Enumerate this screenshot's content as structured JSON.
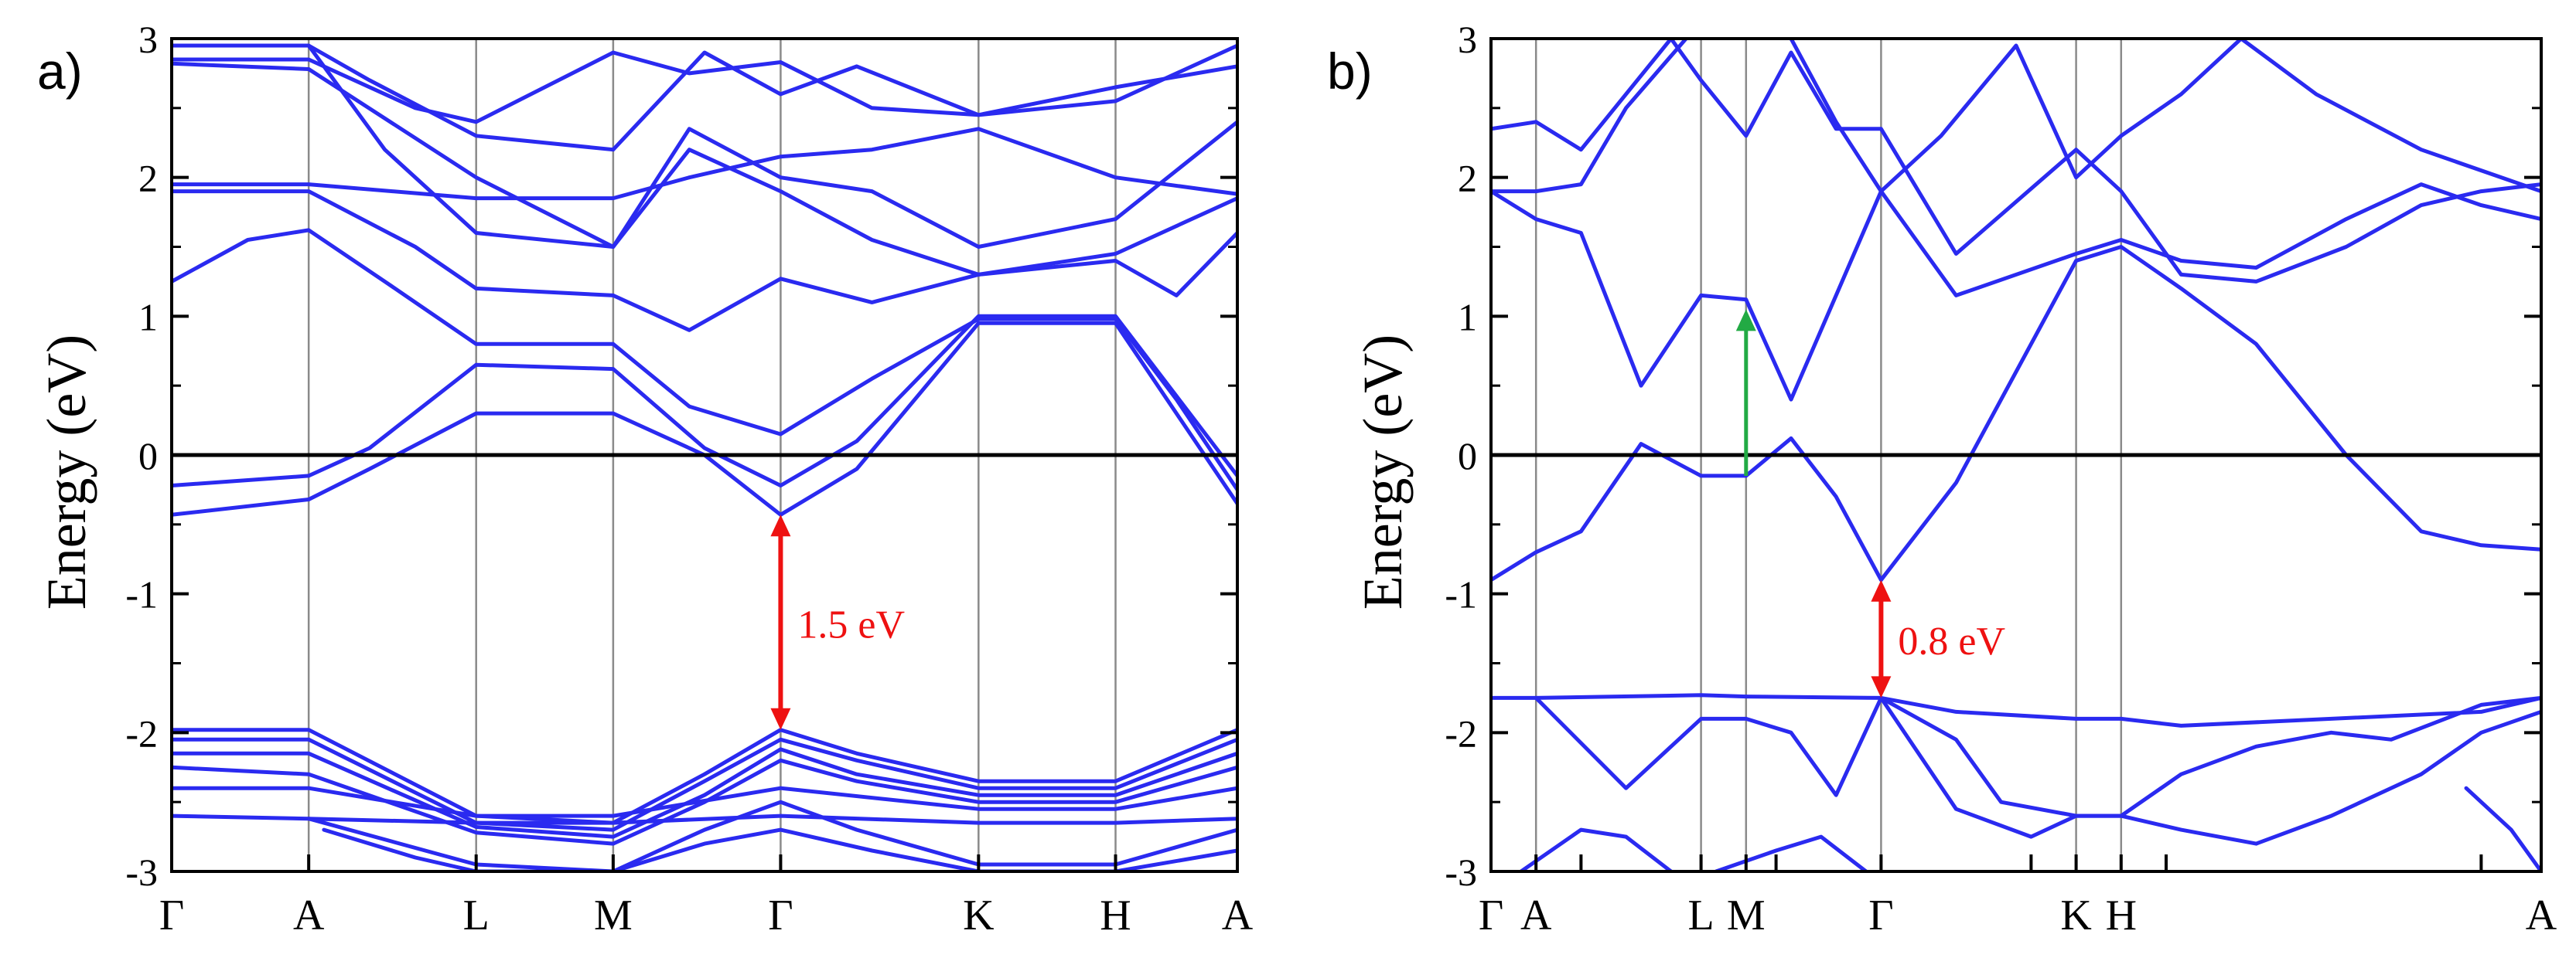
{
  "figure": {
    "background": "#ffffff"
  },
  "chart_data": [
    {
      "type": "line",
      "panel_label": "a)",
      "ylabel": "Energy (eV)",
      "ylim": [
        -3,
        3
      ],
      "yticks": [
        "3",
        "2",
        "1",
        "0",
        "-1",
        "-2",
        "-3"
      ],
      "xlim": [
        0,
        7.0
      ],
      "kpoints": [
        {
          "label": "Γ",
          "x": 0
        },
        {
          "label": "A",
          "x": 0.9
        },
        {
          "label": "L",
          "x": 2.0
        },
        {
          "label": "M",
          "x": 2.9
        },
        {
          "label": "Γ",
          "x": 4.0
        },
        {
          "label": "K",
          "x": 5.3
        },
        {
          "label": "H",
          "x": 6.2
        },
        {
          "label": "A",
          "x": 7.0
        }
      ],
      "fermi_level": 0,
      "line_color": "#2a2af0",
      "gap_annotation": {
        "label": "1.5 eV",
        "x": 4.0,
        "y_from": -0.43,
        "y_to": -1.98,
        "color": "#ee1111"
      },
      "series": [
        {
          "x": [
            0,
            0.9,
            1.3,
            2.0,
            2.9,
            3.5,
            4.0,
            4.5,
            5.3,
            6.2,
            7.0
          ],
          "values": [
            -0.43,
            -0.32,
            -0.1,
            0.3,
            0.3,
            0.0,
            -0.43,
            -0.1,
            0.95,
            0.95,
            -0.35
          ]
        },
        {
          "x": [
            0,
            0.9,
            1.3,
            2.0,
            2.9,
            3.5,
            4.0,
            4.5,
            5.3,
            6.2,
            7.0
          ],
          "values": [
            -0.22,
            -0.15,
            0.05,
            0.65,
            0.62,
            0.05,
            -0.22,
            0.1,
            1.0,
            1.0,
            -0.15
          ]
        },
        {
          "x": [
            0,
            0.5,
            0.9,
            1.4,
            2.0,
            2.9,
            3.4,
            4.0,
            4.6,
            5.3,
            6.2,
            6.6,
            7.0
          ],
          "values": [
            1.25,
            1.55,
            1.62,
            1.25,
            0.8,
            0.8,
            0.35,
            0.15,
            0.55,
            0.98,
            0.98,
            0.4,
            -0.25
          ]
        },
        {
          "x": [
            0,
            0.9,
            1.6,
            2.0,
            2.9,
            3.4,
            4.0,
            4.6,
            5.3,
            6.2,
            6.6,
            7.0
          ],
          "values": [
            1.9,
            1.9,
            1.5,
            1.2,
            1.15,
            0.9,
            1.27,
            1.1,
            1.3,
            1.4,
            1.15,
            1.6
          ]
        },
        {
          "x": [
            0,
            0.9,
            2.0,
            2.9,
            3.4,
            4.0,
            4.6,
            5.3,
            6.2,
            7.0
          ],
          "values": [
            2.82,
            2.78,
            2.0,
            1.5,
            2.2,
            1.9,
            1.55,
            1.3,
            1.45,
            1.85
          ]
        },
        {
          "x": [
            0,
            0.9,
            2.0,
            2.9,
            3.4,
            4.0,
            4.6,
            5.3,
            6.2,
            7.0
          ],
          "values": [
            1.95,
            1.95,
            1.85,
            1.85,
            2.0,
            2.15,
            2.2,
            2.35,
            2.0,
            1.88
          ]
        },
        {
          "x": [
            0,
            0.9,
            1.6,
            2.0,
            2.9,
            3.4,
            4.0,
            4.6,
            5.3,
            6.2,
            7.0
          ],
          "values": [
            2.85,
            2.85,
            2.5,
            2.4,
            2.9,
            2.75,
            2.83,
            2.5,
            2.45,
            2.65,
            2.8
          ]
        },
        {
          "x": [
            0,
            0.9,
            1.4,
            2.0,
            2.9,
            3.4,
            4.0,
            4.6,
            5.3,
            6.2,
            7.0
          ],
          "values": [
            2.95,
            2.95,
            2.2,
            1.6,
            1.5,
            2.35,
            2.0,
            1.9,
            1.5,
            1.7,
            2.4
          ]
        },
        {
          "x": [
            0.9,
            1.3,
            2.0,
            2.9,
            3.5,
            4.0,
            4.5,
            5.3,
            6.2,
            7.0
          ],
          "values": [
            2.95,
            2.7,
            2.3,
            2.2,
            2.9,
            2.6,
            2.8,
            2.45,
            2.55,
            2.95
          ]
        },
        {
          "x": [
            0,
            0.9,
            2.0,
            2.9,
            3.5,
            4.0,
            4.5,
            5.3,
            6.2,
            7.0
          ],
          "values": [
            -1.98,
            -1.98,
            -2.6,
            -2.65,
            -2.3,
            -1.98,
            -2.15,
            -2.35,
            -2.35,
            -1.98
          ]
        },
        {
          "x": [
            0,
            0.9,
            2.0,
            2.9,
            3.5,
            4.0,
            4.5,
            5.3,
            6.2,
            7.0
          ],
          "values": [
            -2.05,
            -2.05,
            -2.65,
            -2.7,
            -2.35,
            -2.05,
            -2.2,
            -2.4,
            -2.4,
            -2.05
          ]
        },
        {
          "x": [
            0,
            0.9,
            2.0,
            2.9,
            3.5,
            4.0,
            4.5,
            5.3,
            6.2,
            7.0
          ],
          "values": [
            -2.15,
            -2.15,
            -2.68,
            -2.75,
            -2.45,
            -2.12,
            -2.3,
            -2.45,
            -2.45,
            -2.15
          ]
        },
        {
          "x": [
            0,
            0.9,
            2.0,
            2.9,
            3.5,
            4.0,
            4.5,
            5.3,
            6.2,
            7.0
          ],
          "values": [
            -2.25,
            -2.3,
            -2.72,
            -2.8,
            -2.5,
            -2.2,
            -2.35,
            -2.5,
            -2.5,
            -2.25
          ]
        },
        {
          "x": [
            0,
            0.9,
            2.0,
            2.9,
            4.0,
            5.3,
            6.2,
            7.0
          ],
          "values": [
            -2.4,
            -2.4,
            -2.6,
            -2.6,
            -2.4,
            -2.55,
            -2.55,
            -2.4
          ]
        },
        {
          "x": [
            0,
            0.9,
            2.0,
            2.9,
            4.0,
            5.3,
            6.2,
            7.0
          ],
          "values": [
            -2.6,
            -2.62,
            -2.65,
            -2.65,
            -2.6,
            -2.65,
            -2.65,
            -2.62
          ]
        },
        {
          "x": [
            0.9,
            1.5,
            2.0,
            2.9,
            3.5,
            4.0,
            4.5,
            5.3,
            6.2,
            7.0
          ],
          "values": [
            -2.62,
            -2.8,
            -2.95,
            -3.0,
            -2.7,
            -2.5,
            -2.7,
            -2.95,
            -2.95,
            -2.7
          ]
        },
        {
          "x": [
            1.0,
            1.6,
            2.0,
            2.9,
            3.5,
            4.0,
            4.6,
            5.3,
            6.2,
            7.0
          ],
          "values": [
            -2.7,
            -2.9,
            -3.0,
            -3.0,
            -2.8,
            -2.7,
            -2.85,
            -3.0,
            -3.0,
            -2.85
          ]
        }
      ]
    },
    {
      "type": "line",
      "panel_label": "b)",
      "ylabel": "Energy (eV)",
      "ylim": [
        -3,
        3
      ],
      "yticks": [
        "3",
        "2",
        "1",
        "0",
        "-1",
        "-2",
        "-3"
      ],
      "xlim": [
        0,
        7.0
      ],
      "kpoints": [
        {
          "label": "Γ",
          "x": 0
        },
        {
          "label": "A",
          "x": 0.3
        },
        {
          "label": "L",
          "x": 1.4
        },
        {
          "label": "M",
          "x": 1.7
        },
        {
          "label": "Γ",
          "x": 2.6
        },
        {
          "label": "K",
          "x": 3.9
        },
        {
          "label": "H",
          "x": 4.2
        },
        {
          "label": "A",
          "x": 7.0
        }
      ],
      "minor_ticks": [
        0.6,
        1.9,
        3.6,
        4.5,
        6.6
      ],
      "fermi_level": 0,
      "line_color": "#2a2af0",
      "gap_annotation": {
        "label": "0.8 eV",
        "x": 2.6,
        "y_from": -0.9,
        "y_to": -1.75,
        "color": "#ee1111"
      },
      "transition_arrow": {
        "x": 1.7,
        "y_from": -0.15,
        "y_to": 1.05,
        "color": "#22aa44"
      },
      "series": [
        {
          "x": [
            0,
            0.3,
            0.6,
            1.0,
            1.4,
            1.7,
            2.0,
            2.3,
            2.6,
            3.1,
            3.9,
            4.2,
            4.6,
            5.1,
            5.7,
            6.2,
            6.6,
            7.0
          ],
          "values": [
            -0.9,
            -0.7,
            -0.55,
            0.08,
            -0.15,
            -0.15,
            0.12,
            -0.3,
            -0.9,
            -0.2,
            1.4,
            1.5,
            1.2,
            0.8,
            0.0,
            -0.55,
            -0.65,
            -0.68
          ]
        },
        {
          "x": [
            0,
            0.3,
            0.6,
            1.0,
            1.4,
            1.7,
            2.0,
            2.3,
            2.6,
            3.1,
            3.9,
            4.2,
            4.6,
            5.1,
            5.7,
            6.2,
            6.6,
            7.0
          ],
          "values": [
            1.9,
            1.7,
            1.6,
            0.5,
            1.15,
            1.12,
            0.4,
            1.15,
            1.9,
            1.15,
            1.45,
            1.55,
            1.4,
            1.35,
            1.7,
            1.95,
            1.8,
            1.7
          ]
        },
        {
          "x": [
            0,
            0.3,
            0.6,
            1.2,
            1.4,
            1.7,
            2.0,
            2.3,
            2.6,
            3.1,
            3.9,
            4.2,
            4.6,
            5.1,
            5.7,
            6.2,
            6.6,
            7.0
          ],
          "values": [
            2.35,
            2.4,
            2.2,
            3.0,
            2.7,
            2.3,
            2.9,
            2.35,
            2.35,
            1.45,
            2.2,
            1.9,
            1.3,
            1.25,
            1.5,
            1.8,
            1.9,
            1.95
          ]
        },
        {
          "x": [
            0,
            0.3,
            0.6,
            0.9,
            1.3
          ],
          "values": [
            1.9,
            1.9,
            1.95,
            2.5,
            3.0
          ]
        },
        {
          "x": [
            2.0,
            2.3,
            2.6,
            3.0,
            3.5,
            3.9,
            4.2
          ],
          "values": [
            3.0,
            2.4,
            1.9,
            2.3,
            2.95,
            2.0,
            2.3
          ]
        },
        {
          "x": [
            4.2,
            4.6,
            5.0,
            5.5,
            6.2,
            7.0
          ],
          "values": [
            2.3,
            2.6,
            3.0,
            2.6,
            2.2,
            1.9
          ]
        },
        {
          "x": [
            0,
            0.3,
            1.4,
            1.7,
            2.6,
            3.1,
            3.9,
            4.2,
            4.6,
            6.6,
            7.0
          ],
          "values": [
            -1.75,
            -1.75,
            -1.73,
            -1.74,
            -1.75,
            -1.85,
            -1.9,
            -1.9,
            -1.95,
            -1.85,
            -1.75
          ]
        },
        {
          "x": [
            0.3,
            0.9,
            1.4,
            1.7,
            2.0,
            2.3,
            2.6,
            3.1,
            3.4,
            3.9,
            4.2,
            4.6,
            5.1,
            5.6,
            6.0,
            6.6,
            7.0
          ],
          "values": [
            -1.75,
            -2.4,
            -1.9,
            -1.9,
            -2.0,
            -2.45,
            -1.75,
            -2.05,
            -2.5,
            -2.6,
            -2.6,
            -2.3,
            -2.1,
            -2.0,
            -2.05,
            -1.8,
            -1.75
          ]
        },
        {
          "x": [
            2.6,
            3.1,
            3.6,
            3.9,
            4.2,
            4.6,
            5.1,
            5.6,
            6.2,
            6.6,
            7.0
          ],
          "values": [
            -1.75,
            -2.55,
            -2.75,
            -2.6,
            -2.6,
            -2.7,
            -2.8,
            -2.6,
            -2.3,
            -2.0,
            -1.85
          ]
        },
        {
          "x": [
            0.2,
            0.6,
            0.9,
            1.2
          ],
          "values": [
            -3.0,
            -2.7,
            -2.75,
            -3.0
          ]
        },
        {
          "x": [
            1.5,
            1.9,
            2.2,
            2.5
          ],
          "values": [
            -3.0,
            -2.85,
            -2.75,
            -3.0
          ]
        },
        {
          "x": [
            6.5,
            6.8,
            7.0
          ],
          "values": [
            -2.4,
            -2.7,
            -3.0
          ]
        }
      ]
    }
  ]
}
